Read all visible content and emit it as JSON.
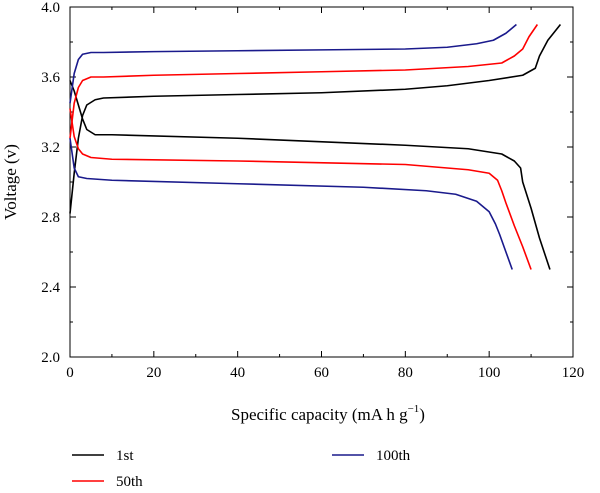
{
  "chart_data": {
    "type": "line",
    "xlabel": "Specific capacity (mA h g",
    "xlabel_sup": "−1",
    "xlabel_close": ")",
    "ylabel": "Voltage (v)",
    "xlim": [
      0,
      120
    ],
    "ylim": [
      2.0,
      4.0
    ],
    "xticks": [
      0,
      20,
      40,
      60,
      80,
      100,
      120
    ],
    "xtick_labels": [
      "0",
      "20",
      "40",
      "60",
      "80",
      "100",
      "120"
    ],
    "yticks": [
      2.0,
      2.4,
      2.8,
      3.2,
      3.6,
      4.0
    ],
    "ytick_labels": [
      "2.0",
      "2.4",
      "2.8",
      "3.2",
      "3.6",
      "4.0"
    ],
    "grid": false,
    "legend_position": "bottom",
    "series": [
      {
        "name": "1st",
        "color": "#000000",
        "charge": [
          [
            0,
            2.82
          ],
          [
            1,
            3.05
          ],
          [
            2,
            3.25
          ],
          [
            3,
            3.38
          ],
          [
            4,
            3.44
          ],
          [
            6,
            3.47
          ],
          [
            8,
            3.48
          ],
          [
            20,
            3.49
          ],
          [
            40,
            3.5
          ],
          [
            60,
            3.51
          ],
          [
            80,
            3.53
          ],
          [
            90,
            3.55
          ],
          [
            100,
            3.58
          ],
          [
            108,
            3.61
          ],
          [
            111,
            3.65
          ],
          [
            112,
            3.72
          ],
          [
            114,
            3.81
          ],
          [
            117,
            3.9
          ]
        ],
        "discharge": [
          [
            0,
            3.58
          ],
          [
            1,
            3.52
          ],
          [
            2,
            3.44
          ],
          [
            3,
            3.36
          ],
          [
            4,
            3.3
          ],
          [
            6,
            3.27
          ],
          [
            10,
            3.27
          ],
          [
            40,
            3.25
          ],
          [
            80,
            3.21
          ],
          [
            95,
            3.19
          ],
          [
            103,
            3.16
          ],
          [
            106,
            3.12
          ],
          [
            107.5,
            3.08
          ],
          [
            108,
            3.0
          ],
          [
            110,
            2.85
          ],
          [
            112,
            2.68
          ],
          [
            114.5,
            2.5
          ]
        ]
      },
      {
        "name": "50th",
        "color": "#ff0000",
        "charge": [
          [
            0,
            3.25
          ],
          [
            1,
            3.45
          ],
          [
            2,
            3.54
          ],
          [
            3,
            3.58
          ],
          [
            5,
            3.6
          ],
          [
            8,
            3.6
          ],
          [
            20,
            3.61
          ],
          [
            40,
            3.62
          ],
          [
            60,
            3.63
          ],
          [
            80,
            3.64
          ],
          [
            95,
            3.66
          ],
          [
            103,
            3.68
          ],
          [
            106,
            3.72
          ],
          [
            108,
            3.76
          ],
          [
            109.5,
            3.83
          ],
          [
            111.5,
            3.9
          ]
        ],
        "discharge": [
          [
            0,
            3.42
          ],
          [
            1,
            3.26
          ],
          [
            2,
            3.19
          ],
          [
            3,
            3.16
          ],
          [
            5,
            3.14
          ],
          [
            10,
            3.13
          ],
          [
            40,
            3.12
          ],
          [
            80,
            3.1
          ],
          [
            95,
            3.07
          ],
          [
            100,
            3.05
          ],
          [
            102,
            3.01
          ],
          [
            103,
            2.95
          ],
          [
            104,
            2.88
          ],
          [
            106,
            2.75
          ],
          [
            108,
            2.63
          ],
          [
            110,
            2.5
          ]
        ]
      },
      {
        "name": "100th",
        "color": "#1a1a8c",
        "charge": [
          [
            0,
            3.45
          ],
          [
            1,
            3.62
          ],
          [
            2,
            3.7
          ],
          [
            3,
            3.73
          ],
          [
            5,
            3.74
          ],
          [
            8,
            3.74
          ],
          [
            20,
            3.745
          ],
          [
            40,
            3.75
          ],
          [
            60,
            3.755
          ],
          [
            80,
            3.76
          ],
          [
            90,
            3.77
          ],
          [
            97,
            3.79
          ],
          [
            101,
            3.81
          ],
          [
            104,
            3.85
          ],
          [
            106.5,
            3.9
          ]
        ],
        "discharge": [
          [
            0,
            3.25
          ],
          [
            1,
            3.08
          ],
          [
            2,
            3.03
          ],
          [
            4,
            3.02
          ],
          [
            10,
            3.01
          ],
          [
            40,
            2.99
          ],
          [
            70,
            2.97
          ],
          [
            85,
            2.95
          ],
          [
            92,
            2.93
          ],
          [
            97,
            2.89
          ],
          [
            100,
            2.83
          ],
          [
            101.5,
            2.76
          ],
          [
            102.5,
            2.7
          ],
          [
            104,
            2.6
          ],
          [
            105.5,
            2.5
          ]
        ]
      }
    ]
  }
}
